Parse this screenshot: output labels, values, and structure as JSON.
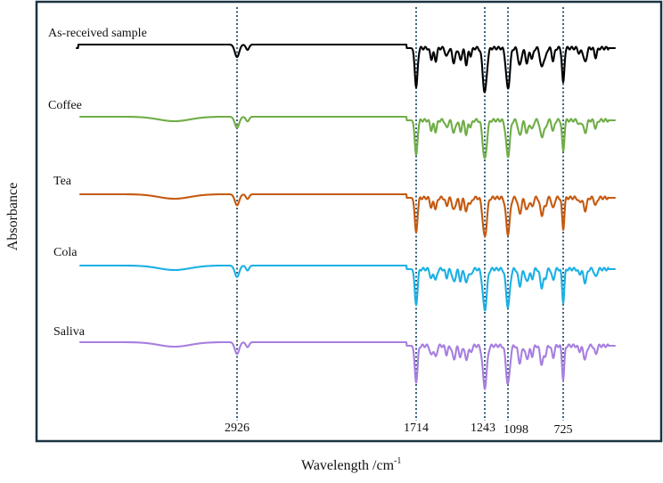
{
  "chart_data": {
    "type": "line",
    "title": "",
    "xlabel": "Wavelength /cm",
    "xlabel_superscript": "-1",
    "ylabel": "Absorbance",
    "x_axis_reversed": true,
    "marked_peaks": [
      {
        "x": 2926,
        "label": "2926"
      },
      {
        "x": 1714,
        "label": "1714"
      },
      {
        "x": 1243,
        "label": "1243"
      },
      {
        "x": 1098,
        "label": "1098"
      },
      {
        "x": 725,
        "label": "725"
      }
    ],
    "series": [
      {
        "name": "As-received sample",
        "color": "#000000"
      },
      {
        "name": "Coffee",
        "color": "#70ad47"
      },
      {
        "name": "Tea",
        "color": "#c55a11"
      },
      {
        "name": "Cola",
        "color": "#1cb0e4"
      },
      {
        "name": "Saliva",
        "color": "#a77fe0"
      }
    ]
  }
}
